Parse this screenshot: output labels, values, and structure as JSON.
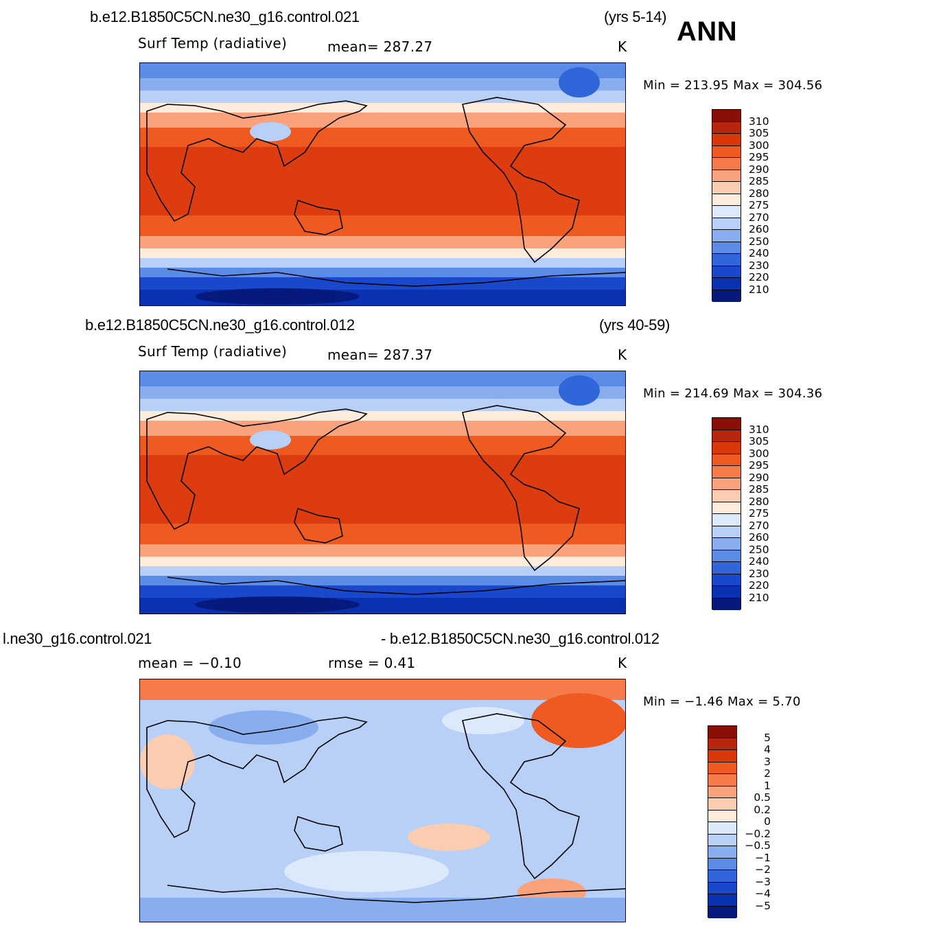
{
  "season": "ANN",
  "panels": [
    {
      "case_title": "b.e12.B1850C5CN.ne30_g16.control.021",
      "years": "(yrs 5-14)",
      "variable": "Surf Temp  (radiative)",
      "stat1": "mean=  287.27",
      "units": "K",
      "minmax": "Min  =  213.95  Max  =  304.56"
    },
    {
      "case_title": "b.e12.B1850C5CN.ne30_g16.control.012",
      "years": "(yrs 40-59)",
      "variable": "Surf Temp  (radiative)",
      "stat1": "mean=  287.37",
      "units": "K",
      "minmax": "Min  =  214.69  Max  =  304.36"
    },
    {
      "case_title": "l.ne30_g16.control.021",
      "years": "- b.e12.B1850C5CN.ne30_g16.control.012",
      "variable": "mean  =    −0.10",
      "stat1": "rmse  =     0.41",
      "units": "K",
      "minmax": "Min  =    −1.46  Max  =     5.70"
    }
  ],
  "colorbars": {
    "absolute": {
      "labels": [
        "310",
        "305",
        "300",
        "295",
        "290",
        "285",
        "280",
        "275",
        "270",
        "260",
        "250",
        "240",
        "230",
        "220",
        "210"
      ],
      "colors": [
        "#8a1007",
        "#b8260d",
        "#d8380a",
        "#ee5a20",
        "#f57c4a",
        "#f9a27c",
        "#fbcdb0",
        "#fdebdc",
        "#dce9fb",
        "#b8cff7",
        "#89aef0",
        "#5a8be6",
        "#3166db",
        "#1948cd",
        "#0a31b2",
        "#06197c"
      ]
    },
    "difference": {
      "labels": [
        "5",
        "4",
        "3",
        "2",
        "1",
        "0.5",
        "0.2",
        "0",
        "−0.2",
        "−0.5",
        "−1",
        "−2",
        "−3",
        "−4",
        "−5"
      ],
      "colors": [
        "#8a1007",
        "#b8260d",
        "#d8380a",
        "#ee5a20",
        "#f57c4a",
        "#f9a27c",
        "#fbcdb0",
        "#fdebdc",
        "#dce9fb",
        "#b8cff7",
        "#89aef0",
        "#5a8be6",
        "#3166db",
        "#1948cd",
        "#0a31b2",
        "#06197c"
      ]
    }
  }
}
